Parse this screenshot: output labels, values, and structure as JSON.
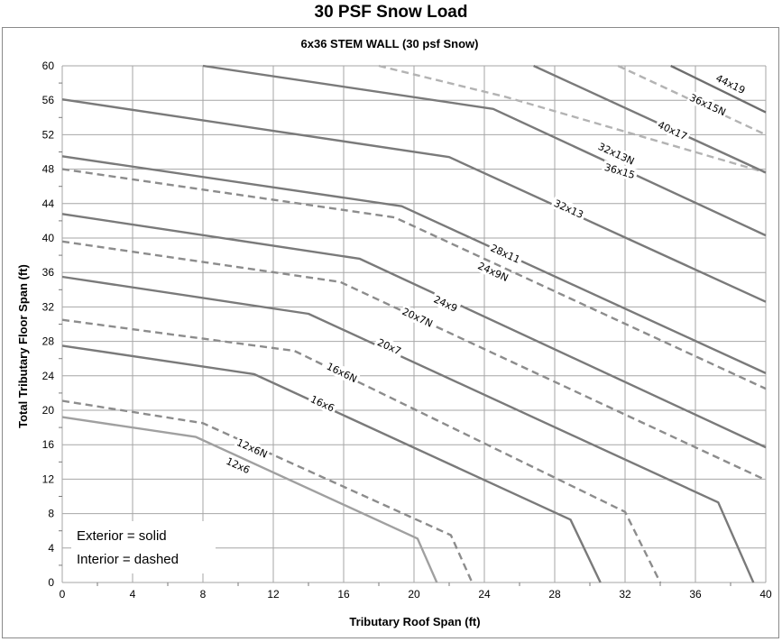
{
  "page_title": "30 PSF Snow Load",
  "chart_data": {
    "type": "line",
    "title": "6x36 STEM WALL (30 psf Snow)",
    "xlabel": "Tributary Roof Span (ft)",
    "ylabel": "Total Tributary Floor Span (ft)",
    "xlim": [
      0,
      40
    ],
    "ylim": [
      0,
      60
    ],
    "xticks": [
      0,
      4,
      8,
      12,
      16,
      20,
      24,
      28,
      32,
      36,
      40
    ],
    "yticks": [
      0,
      4,
      8,
      12,
      16,
      20,
      24,
      28,
      32,
      36,
      40,
      44,
      48,
      52,
      56,
      60
    ],
    "grid": true,
    "notes": [
      "Exterior = solid",
      "Interior = dashed"
    ],
    "colors": {
      "solid": "#7f7f7f",
      "dashed": "#8c8c8c",
      "light": "#b3b3b3",
      "grid": "#a6a6a6"
    },
    "series": [
      {
        "name": "12x6",
        "style": "solid",
        "color": "#a0a0a0",
        "points": [
          [
            0,
            19.2
          ],
          [
            7.6,
            16.9
          ],
          [
            20.2,
            5.1
          ],
          [
            21.3,
            0
          ]
        ]
      },
      {
        "name": "12x6N",
        "style": "dashed",
        "color": "#8c8c8c",
        "points": [
          [
            0,
            21.1
          ],
          [
            8.0,
            18.5
          ],
          [
            22.1,
            5.5
          ],
          [
            23.3,
            0
          ]
        ]
      },
      {
        "name": "16x6",
        "style": "solid",
        "color": "#7a7a7a",
        "points": [
          [
            0,
            27.5
          ],
          [
            10.9,
            24.2
          ],
          [
            28.9,
            7.3
          ],
          [
            30.6,
            0
          ]
        ]
      },
      {
        "name": "16x6N",
        "style": "dashed",
        "color": "#8c8c8c",
        "points": [
          [
            0,
            30.5
          ],
          [
            13.2,
            26.9
          ],
          [
            32.0,
            8.2
          ],
          [
            34.0,
            0
          ]
        ]
      },
      {
        "name": "20x7",
        "style": "solid",
        "color": "#7a7a7a",
        "points": [
          [
            0,
            35.5
          ],
          [
            14.0,
            31.2
          ],
          [
            37.3,
            9.3
          ],
          [
            39.3,
            0
          ]
        ]
      },
      {
        "name": "20x7N",
        "style": "dashed",
        "color": "#8c8c8c",
        "points": [
          [
            0,
            39.6
          ],
          [
            15.8,
            34.9
          ],
          [
            40,
            11.9
          ]
        ]
      },
      {
        "name": "24x9",
        "style": "solid",
        "color": "#7a7a7a",
        "points": [
          [
            0,
            42.8
          ],
          [
            16.9,
            37.6
          ],
          [
            40,
            15.7
          ]
        ]
      },
      {
        "name": "24x9N",
        "style": "dashed",
        "color": "#8c8c8c",
        "points": [
          [
            0,
            48.0
          ],
          [
            18.9,
            42.4
          ],
          [
            40,
            22.5
          ]
        ]
      },
      {
        "name": "28x11",
        "style": "solid",
        "color": "#7a7a7a",
        "points": [
          [
            0,
            49.5
          ],
          [
            19.3,
            43.7
          ],
          [
            40,
            24.3
          ]
        ]
      },
      {
        "name": "32x13",
        "style": "solid",
        "color": "#7a7a7a",
        "points": [
          [
            0,
            56.1
          ],
          [
            22.0,
            49.4
          ],
          [
            40,
            32.6
          ]
        ]
      },
      {
        "name": "32x13N",
        "style": "solid",
        "color": "#7a7a7a",
        "points": [
          [
            8.0,
            60
          ],
          [
            24.5,
            55.0
          ],
          [
            40,
            40.3
          ]
        ]
      },
      {
        "name": "36x15",
        "style": "dashed",
        "color": "#b3b3b3",
        "points": [
          [
            18.0,
            60
          ],
          [
            25.2,
            56.4
          ],
          [
            40,
            47.6
          ]
        ]
      },
      {
        "name": "36x15N",
        "style": "solid",
        "color": "#7a7a7a",
        "points": [
          [
            26.8,
            60
          ],
          [
            40,
            47.6
          ]
        ]
      },
      {
        "name": "40x17",
        "style": "dashed",
        "color": "#b3b3b3",
        "points": [
          [
            31.6,
            60
          ],
          [
            40,
            52.0
          ]
        ]
      },
      {
        "name": "44x19",
        "style": "solid",
        "color": "#6e6e6e",
        "points": [
          [
            34.6,
            60
          ],
          [
            40,
            54.6
          ]
        ]
      }
    ],
    "curve_labels": [
      {
        "text": "12x6",
        "x": 10.0,
        "y": 13.6
      },
      {
        "text": "12x6N",
        "x": 10.8,
        "y": 15.6
      },
      {
        "text": "16x6",
        "x": 14.8,
        "y": 20.8
      },
      {
        "text": "16x6N",
        "x": 15.9,
        "y": 24.4
      },
      {
        "text": "20x7",
        "x": 18.6,
        "y": 27.4
      },
      {
        "text": "20x7N",
        "x": 20.2,
        "y": 30.8
      },
      {
        "text": "24x9",
        "x": 21.8,
        "y": 32.4
      },
      {
        "text": "24x9N",
        "x": 24.5,
        "y": 36.1
      },
      {
        "text": "28x11",
        "x": 25.2,
        "y": 38.2
      },
      {
        "text": "32x13",
        "x": 28.8,
        "y": 43.4
      },
      {
        "text": "36x15",
        "x": 31.7,
        "y": 47.8
      },
      {
        "text": "32x13N",
        "x": 31.5,
        "y": 49.8
      },
      {
        "text": "40x17",
        "x": 34.7,
        "y": 52.5
      },
      {
        "text": "36x15N",
        "x": 36.7,
        "y": 55.5
      },
      {
        "text": "44x19",
        "x": 38.0,
        "y": 57.9
      }
    ]
  }
}
